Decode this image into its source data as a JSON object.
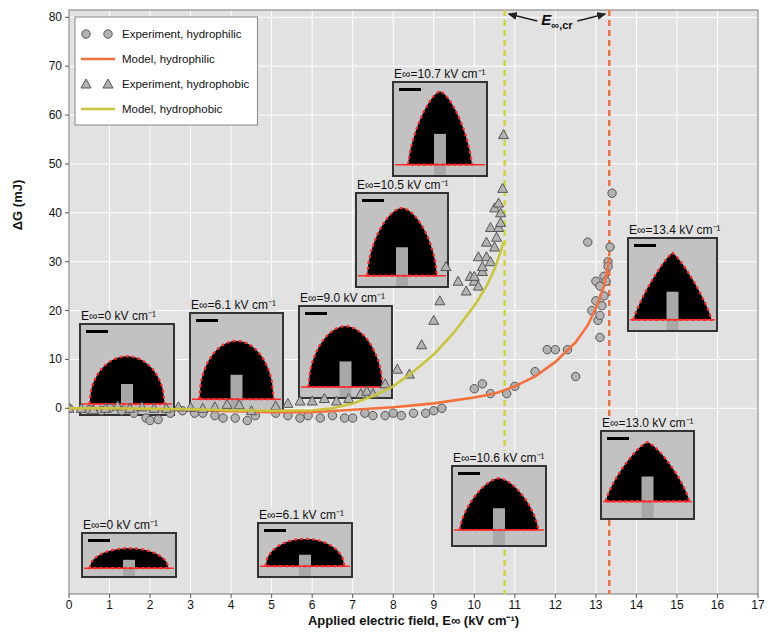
{
  "chart_data": {
    "type": "scatter",
    "x_label": "Applied electric field, E∞ (kV cm⁻¹)",
    "y_label": "ΔG (mJ)",
    "xlim": [
      0,
      17
    ],
    "ylim": [
      -38,
      81.5
    ],
    "xticks": [
      0,
      1,
      2,
      3,
      4,
      5,
      6,
      7,
      8,
      9,
      10,
      11,
      12,
      13,
      14,
      15,
      16,
      17
    ],
    "yticks": [
      0,
      10,
      20,
      30,
      40,
      50,
      60,
      70,
      80
    ],
    "grid": true,
    "legend": "top-left",
    "series": [
      {
        "name": "Experiment, hydrophilic",
        "type": "scatter",
        "marker": "circle",
        "color": "#b3b3b3",
        "x": [
          0,
          0.5,
          0.8,
          1.0,
          1.3,
          1.6,
          1.9,
          2.0,
          2.2,
          2.5,
          2.8,
          3.1,
          3.3,
          3.6,
          3.8,
          4.1,
          4.4,
          4.6,
          5.1,
          5.4,
          5.7,
          5.9,
          6.2,
          6.5,
          6.8,
          7.0,
          7.3,
          7.5,
          7.8,
          8.0,
          8.2,
          8.5,
          8.8,
          9.0,
          9.2,
          10.0,
          10.2,
          10.4,
          10.8,
          11.0,
          11.5,
          11.8,
          12.0,
          12.3,
          12.5,
          12.8,
          12.9,
          13.0,
          13.0,
          13.05,
          13.1,
          13.1,
          13.1,
          13.15,
          13.2,
          13.2,
          13.25,
          13.3,
          13.3,
          13.35,
          13.4
        ],
        "values": [
          0,
          -0.3,
          -0.5,
          0,
          -0.5,
          -1,
          -2,
          -2.5,
          -2.3,
          -1,
          -0.5,
          -1,
          -1,
          -1.5,
          -2,
          -2,
          -2.5,
          -1.5,
          -1,
          -1.5,
          -2,
          -1.5,
          -2,
          -1.5,
          -2,
          -2,
          -1,
          -1.5,
          -1.5,
          -1,
          -1.5,
          -1,
          -1,
          -0.5,
          0,
          4,
          5,
          3,
          3,
          4.5,
          7.5,
          12,
          12,
          12,
          6.5,
          34,
          20,
          22,
          26,
          18,
          25,
          14.5,
          19,
          21,
          27,
          23,
          26,
          30,
          29,
          33,
          44
        ]
      },
      {
        "name": "Model, hydrophilic",
        "type": "line",
        "line_style": "solid",
        "color": "#f4703c",
        "x": [
          0,
          1,
          2,
          3,
          4,
          5,
          6,
          7,
          8,
          9,
          10,
          10.5,
          11,
          11.5,
          12,
          12.5,
          12.8,
          13,
          13.2,
          13.3,
          13.33
        ],
        "values": [
          0,
          -0.1,
          -0.2,
          -0.4,
          -0.6,
          -0.8,
          -0.8,
          -0.3,
          0.2,
          1,
          2.2,
          3,
          4.5,
          6.5,
          9.5,
          13.5,
          17,
          20.5,
          25,
          29,
          31
        ]
      },
      {
        "name": "Experiment, hydrophobic",
        "type": "scatter",
        "marker": "triangle",
        "color": "#b3b3b3",
        "x": [
          0,
          0.3,
          0.6,
          0.9,
          1.2,
          1.5,
          1.8,
          2.1,
          2.4,
          2.7,
          3.0,
          3.3,
          3.6,
          3.9,
          4.2,
          4.5,
          5.1,
          5.4,
          5.7,
          6.0,
          6.3,
          6.6,
          6.9,
          7.2,
          7.35,
          7.5,
          7.8,
          8.1,
          8.4,
          8.7,
          9.0,
          9.15,
          9.3,
          9.6,
          9.8,
          9.9,
          10.0,
          10.0,
          10.1,
          10.1,
          10.2,
          10.2,
          10.3,
          10.3,
          10.4,
          10.4,
          10.5,
          10.5,
          10.55,
          10.6,
          10.6,
          10.65,
          10.65,
          10.7,
          10.72
        ],
        "values": [
          0,
          0,
          -0.3,
          0,
          0.5,
          0,
          0.3,
          0,
          0,
          0.3,
          0.2,
          0,
          0.3,
          0.8,
          0.7,
          -0.5,
          0.5,
          1,
          1.5,
          1.5,
          2,
          1.5,
          2,
          3,
          3.5,
          3,
          5,
          8,
          7,
          13,
          18,
          22,
          29,
          26,
          24,
          27,
          26,
          27,
          25,
          31,
          28,
          29,
          31,
          34,
          30,
          37,
          33,
          41,
          35,
          37,
          42,
          38,
          40,
          45,
          56
        ]
      },
      {
        "name": "Model, hydrophobic",
        "type": "line",
        "line_style": "solid",
        "color": "#c9c63c",
        "x": [
          0,
          1,
          2,
          3,
          4,
          5,
          6,
          6.5,
          7,
          7.5,
          8,
          8.5,
          9,
          9.5,
          10,
          10.3,
          10.5,
          10.65,
          10.72
        ],
        "values": [
          0,
          0,
          -0.1,
          -0.2,
          -0.4,
          -0.5,
          -0.4,
          0,
          1,
          2.5,
          4.5,
          7.5,
          11,
          15.5,
          21,
          25,
          28.5,
          32,
          34
        ]
      }
    ],
    "reference_lines": [
      {
        "value": 10.75,
        "color": "#d6d23c",
        "line_style": "dashed"
      },
      {
        "value": 13.33,
        "color": "#f4703c",
        "line_style": "dashed"
      }
    ],
    "annotation": "E∞,cr",
    "insets": [
      {
        "label": "E∞=0 kV cm⁻¹"
      },
      {
        "label": "E∞=6.1 kV cm⁻¹"
      },
      {
        "label": "E∞=9.0 kV cm⁻¹"
      },
      {
        "label": "E∞=10.5 kV cm⁻¹"
      },
      {
        "label": "E∞=10.7 kV cm⁻¹"
      },
      {
        "label": "E∞=13.4 kV cm⁻¹"
      },
      {
        "label": "E∞=0 kV cm⁻¹"
      },
      {
        "label": "E∞=6.1 kV cm⁻¹"
      },
      {
        "label": "E∞=10.6 kV cm⁻¹"
      },
      {
        "label": "E∞=13.0 kV cm⁻¹"
      }
    ]
  }
}
